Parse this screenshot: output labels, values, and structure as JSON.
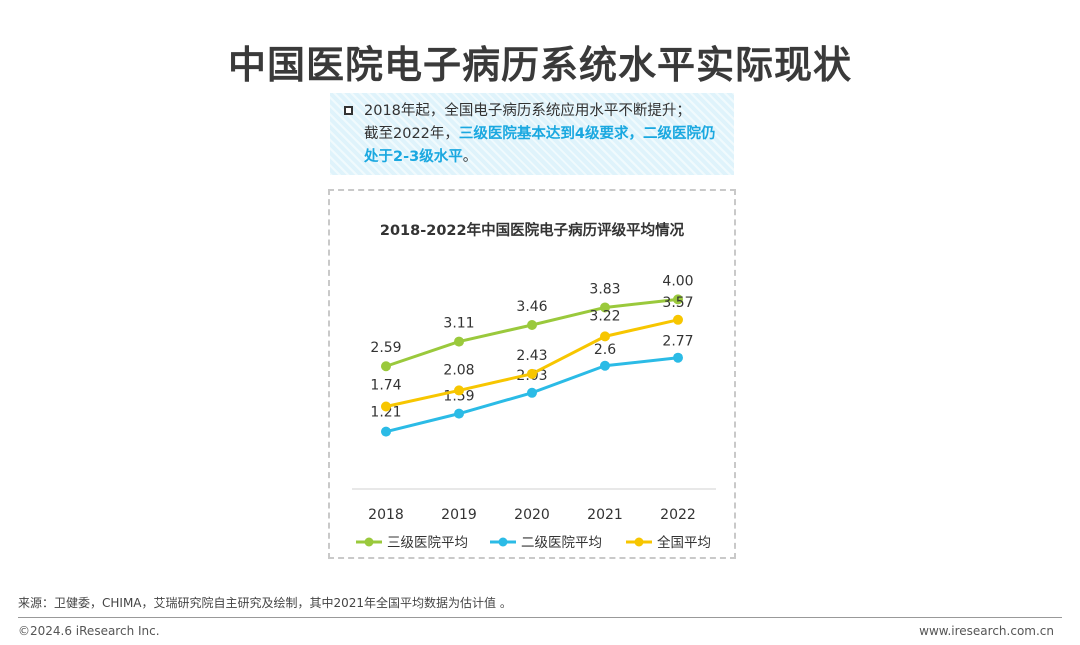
{
  "page": {
    "title": "中国医院电子病历系统水平实际现状"
  },
  "note": {
    "line1": "2018年起，全国电子病历系统应用水平不断提升；",
    "line2_prefix": "截至2022年，",
    "highlight": "三级医院基本达到4级要求，二级医院仍处于2-3级水平",
    "line2_suffix": "。"
  },
  "chart_data": {
    "type": "line",
    "title": "2018-2022年中国医院电子病历评级平均情况",
    "categories": [
      "2018",
      "2019",
      "2020",
      "2021",
      "2022"
    ],
    "ylim": [
      0,
      4.4
    ],
    "grid": false,
    "legend_position": "bottom",
    "series": [
      {
        "name": "三级医院平均",
        "color": "#9ac93c",
        "values": [
          2.59,
          3.11,
          3.46,
          3.83,
          4.0
        ],
        "labels": [
          "2.59",
          "3.11",
          "3.46",
          "3.83",
          "4.00"
        ]
      },
      {
        "name": "二级医院平均",
        "color": "#2bbbe6",
        "values": [
          1.21,
          1.59,
          2.03,
          2.6,
          2.77
        ],
        "labels": [
          "1.21",
          "1.59",
          "2.03",
          "2.6",
          "2.77"
        ]
      },
      {
        "name": "全国平均",
        "color": "#f7c600",
        "values": [
          1.74,
          2.08,
          2.43,
          3.22,
          3.57
        ],
        "labels": [
          "1.74",
          "2.08",
          "2.43",
          "3.22",
          "3.57"
        ]
      }
    ]
  },
  "footer": {
    "source": "来源：卫健委，CHIMA，艾瑞研究院自主研究及绘制，其中2021年全国平均数据为估计值 。",
    "copyright": "©2024.6 iResearch Inc.",
    "website": "www.iresearch.com.cn"
  }
}
